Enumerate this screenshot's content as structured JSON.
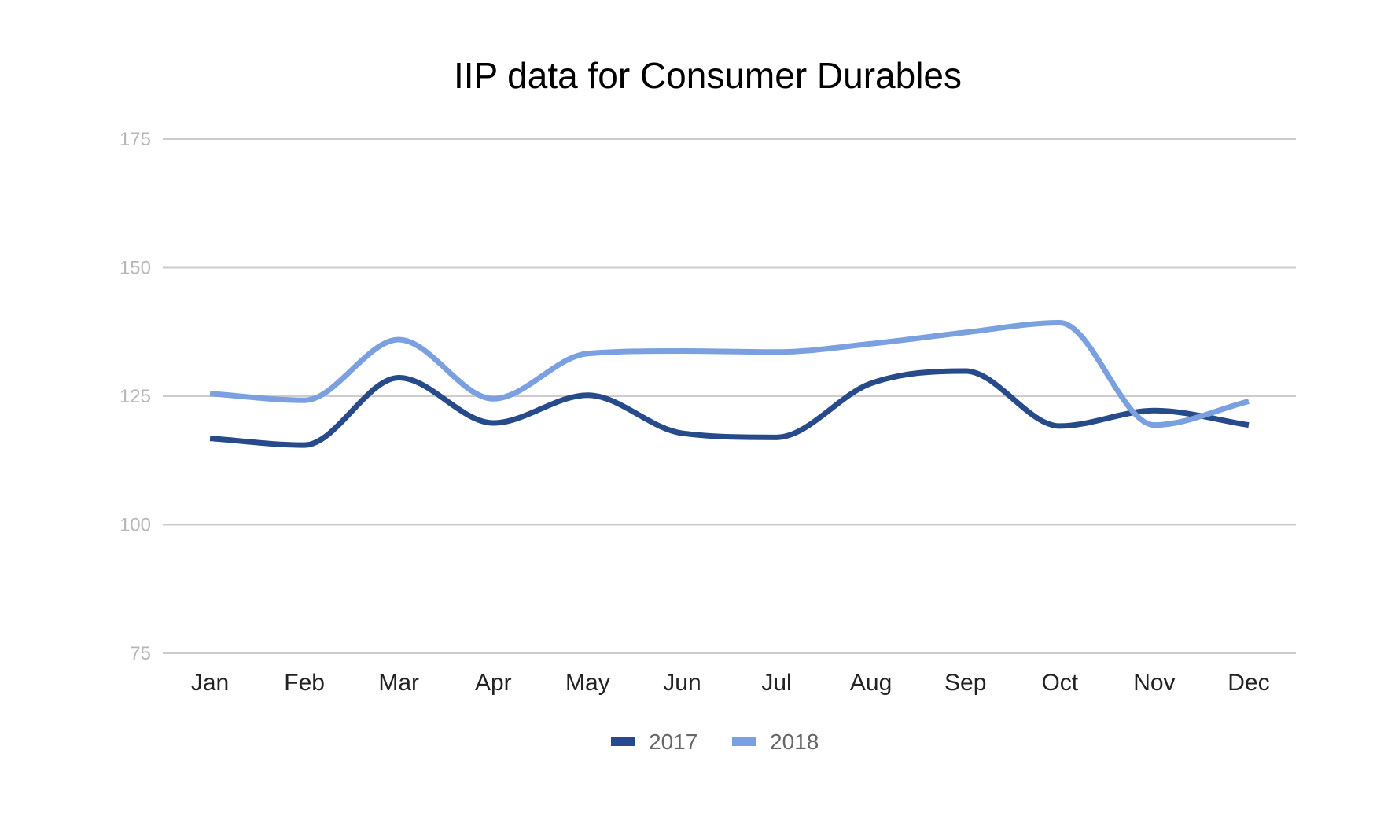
{
  "chart_data": {
    "type": "line",
    "title": "IIP data for Consumer Durables",
    "xlabel": "",
    "ylabel": "",
    "categories": [
      "Jan",
      "Feb",
      "Mar",
      "Apr",
      "May",
      "Jun",
      "Jul",
      "Aug",
      "Sep",
      "Oct",
      "Nov",
      "Dec"
    ],
    "ylim": [
      75,
      175
    ],
    "yticks": [
      "75",
      "100",
      "125",
      "150",
      "175"
    ],
    "grid": true,
    "legend_position": "bottom",
    "series": [
      {
        "name": "2017",
        "color": "#264a8a",
        "smooth": true,
        "values": [
          116.8,
          115.5,
          128.6,
          119.8,
          125.2,
          117.8,
          117.0,
          127.5,
          129.9,
          119.2,
          122.2,
          119.4
        ]
      },
      {
        "name": "2018",
        "color": "#7aa0e0",
        "smooth": true,
        "values": [
          125.5,
          124.2,
          136.0,
          124.5,
          133.3,
          133.8,
          133.6,
          135.2,
          137.4,
          139.3,
          119.4,
          124.0
        ]
      }
    ]
  }
}
